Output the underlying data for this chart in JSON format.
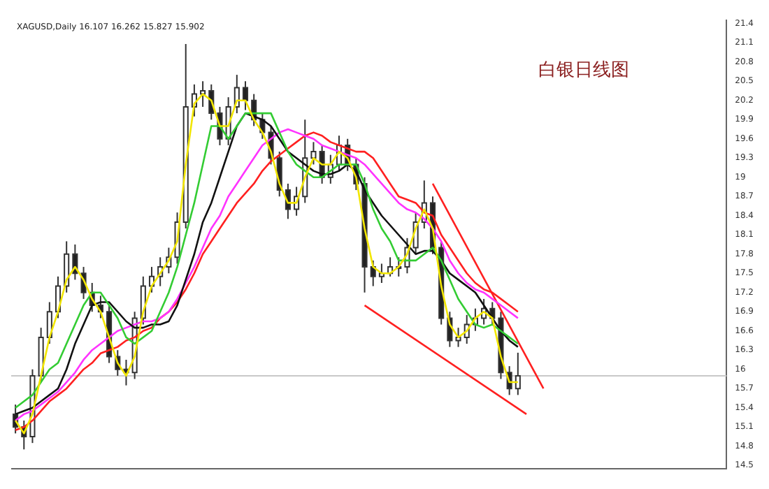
{
  "chart_data": {
    "type": "candlestick",
    "title": "白银日线图",
    "subtitle": "XAGUSD,Daily 16.107 16.262 15.827 15.902",
    "categories": [
      null,
      null,
      null,
      null,
      null,
      null,
      null,
      null,
      null,
      null,
      null,
      null,
      null,
      null,
      null,
      null,
      null,
      null,
      null,
      null,
      null,
      null,
      null,
      null,
      null,
      null,
      null,
      null,
      null,
      null,
      null,
      null,
      null,
      null,
      null,
      null,
      null,
      null,
      null,
      null,
      null,
      null,
      null,
      null,
      null,
      null,
      null,
      null,
      null,
      null,
      null,
      null,
      null,
      null,
      null,
      null,
      null,
      null,
      null,
      null,
      null,
      null,
      null,
      null,
      null,
      null,
      null,
      null,
      null,
      null,
      null,
      null,
      null,
      null,
      null,
      null,
      null,
      null,
      null,
      null,
      null,
      null,
      null,
      null
    ],
    "ohlc": [
      [
        15.3,
        15.45,
        15.0,
        15.1
      ],
      [
        15.1,
        15.2,
        14.75,
        14.95
      ],
      [
        14.95,
        16.0,
        14.85,
        15.9
      ],
      [
        15.9,
        16.65,
        15.8,
        16.5
      ],
      [
        16.5,
        17.05,
        16.4,
        16.9
      ],
      [
        16.9,
        17.45,
        16.8,
        17.3
      ],
      [
        17.3,
        18.0,
        17.2,
        17.8
      ],
      [
        17.8,
        17.95,
        17.4,
        17.5
      ],
      [
        17.5,
        17.6,
        17.1,
        17.2
      ],
      [
        17.2,
        17.35,
        16.9,
        17.0
      ],
      [
        17.0,
        17.15,
        16.8,
        16.9
      ],
      [
        16.9,
        17.0,
        16.1,
        16.2
      ],
      [
        16.2,
        16.3,
        15.9,
        16.0
      ],
      [
        16.0,
        16.15,
        15.75,
        15.95
      ],
      [
        15.95,
        16.9,
        15.85,
        16.8
      ],
      [
        16.8,
        17.45,
        16.7,
        17.3
      ],
      [
        17.3,
        17.6,
        17.2,
        17.45
      ],
      [
        17.45,
        17.75,
        17.3,
        17.6
      ],
      [
        17.6,
        17.9,
        17.5,
        17.75
      ],
      [
        17.75,
        18.45,
        17.65,
        18.3
      ],
      [
        18.3,
        21.08,
        18.2,
        20.1
      ],
      [
        20.1,
        20.45,
        19.95,
        20.3
      ],
      [
        20.3,
        20.5,
        20.1,
        20.35
      ],
      [
        20.35,
        20.45,
        19.9,
        20.0
      ],
      [
        20.0,
        20.1,
        19.5,
        19.6
      ],
      [
        19.6,
        20.25,
        19.5,
        20.1
      ],
      [
        20.1,
        20.6,
        20.0,
        20.4
      ],
      [
        20.4,
        20.5,
        20.05,
        20.2
      ],
      [
        20.2,
        20.3,
        19.8,
        19.9
      ],
      [
        19.9,
        20.0,
        19.6,
        19.7
      ],
      [
        19.7,
        19.8,
        19.2,
        19.3
      ],
      [
        19.3,
        19.4,
        18.7,
        18.8
      ],
      [
        18.8,
        18.9,
        18.35,
        18.5
      ],
      [
        18.5,
        18.85,
        18.4,
        18.7
      ],
      [
        18.7,
        19.9,
        18.6,
        19.3
      ],
      [
        19.3,
        19.55,
        19.2,
        19.4
      ],
      [
        19.4,
        19.5,
        18.9,
        19.0
      ],
      [
        19.0,
        19.35,
        18.9,
        19.2
      ],
      [
        19.2,
        19.65,
        19.1,
        19.5
      ],
      [
        19.5,
        19.6,
        19.1,
        19.2
      ],
      [
        19.2,
        19.3,
        18.8,
        18.9
      ],
      [
        18.9,
        19.0,
        17.2,
        17.6
      ],
      [
        17.6,
        17.7,
        17.3,
        17.45
      ],
      [
        17.45,
        17.65,
        17.35,
        17.5
      ],
      [
        17.5,
        17.75,
        17.45,
        17.6
      ],
      [
        17.6,
        17.75,
        17.45,
        17.6
      ],
      [
        17.6,
        18.05,
        17.5,
        17.9
      ],
      [
        17.9,
        18.45,
        17.8,
        18.3
      ],
      [
        18.3,
        18.95,
        18.2,
        18.6
      ],
      [
        18.6,
        18.7,
        17.8,
        17.9
      ],
      [
        17.9,
        18.0,
        16.7,
        16.8
      ],
      [
        16.8,
        16.9,
        16.35,
        16.45
      ],
      [
        16.45,
        16.65,
        16.35,
        16.5
      ],
      [
        16.5,
        16.85,
        16.4,
        16.7
      ],
      [
        16.7,
        16.95,
        16.6,
        16.8
      ],
      [
        16.8,
        17.1,
        16.7,
        16.95
      ],
      [
        16.95,
        17.05,
        16.7,
        16.8
      ],
      [
        16.8,
        16.9,
        15.85,
        15.95
      ],
      [
        15.95,
        16.05,
        15.6,
        15.7
      ],
      [
        15.7,
        16.26,
        15.6,
        15.9
      ],
      null,
      null,
      null,
      null,
      null,
      null,
      null,
      null,
      null,
      null,
      null,
      null,
      null,
      null,
      null,
      null,
      null,
      null,
      null,
      null,
      null,
      null,
      null,
      null
    ],
    "series": [
      {
        "type": "line",
        "color": "#f2e600",
        "values": [
          15.2,
          15.0,
          15.3,
          15.9,
          16.5,
          16.9,
          17.4,
          17.6,
          17.4,
          17.1,
          16.9,
          16.5,
          16.1,
          15.9,
          16.2,
          16.9,
          17.3,
          17.5,
          17.7,
          18.0,
          19.2,
          20.15,
          20.3,
          20.2,
          19.8,
          19.8,
          20.2,
          20.2,
          19.9,
          19.7,
          19.4,
          18.9,
          18.6,
          18.6,
          19.0,
          19.3,
          19.2,
          19.2,
          19.4,
          19.3,
          19.0,
          18.2,
          17.6,
          17.5,
          17.5,
          17.6,
          17.8,
          18.2,
          18.5,
          18.2,
          17.3,
          16.7,
          16.5,
          16.6,
          16.8,
          16.9,
          16.8,
          16.2,
          15.8,
          15.8,
          null,
          null,
          null,
          null,
          null,
          null,
          null,
          null,
          null,
          null,
          null,
          null,
          null,
          null,
          null,
          null,
          null,
          null,
          null,
          null,
          null,
          null,
          null,
          null
        ]
      },
      {
        "type": "line",
        "color": "#33cc33",
        "values": [
          15.4,
          15.5,
          15.6,
          15.8,
          16.0,
          16.1,
          16.4,
          16.7,
          17.0,
          17.2,
          17.2,
          17.0,
          16.8,
          16.5,
          16.4,
          16.5,
          16.6,
          16.9,
          17.2,
          17.6,
          18.1,
          18.6,
          19.2,
          19.8,
          19.8,
          19.6,
          19.8,
          20.0,
          20.0,
          20.0,
          20.0,
          19.7,
          19.4,
          19.2,
          19.1,
          19.0,
          19.0,
          19.1,
          19.2,
          19.2,
          19.2,
          18.9,
          18.5,
          18.2,
          18.0,
          17.7,
          17.7,
          17.7,
          17.8,
          17.9,
          17.7,
          17.4,
          17.1,
          16.9,
          16.7,
          16.65,
          16.7,
          16.6,
          16.5,
          16.4,
          null,
          null,
          null,
          null,
          null,
          null,
          null,
          null,
          null,
          null,
          null,
          null,
          null,
          null,
          null,
          null,
          null,
          null,
          null,
          null,
          null,
          null,
          null,
          null
        ]
      },
      {
        "type": "line",
        "color": "#111111",
        "values": [
          15.3,
          15.35,
          15.4,
          15.5,
          15.6,
          15.7,
          16.0,
          16.4,
          16.7,
          17.0,
          17.05,
          17.05,
          16.9,
          16.75,
          16.65,
          16.65,
          16.7,
          16.7,
          16.75,
          17.0,
          17.4,
          17.8,
          18.3,
          18.6,
          19.0,
          19.4,
          19.8,
          20.0,
          19.95,
          19.9,
          19.8,
          19.6,
          19.4,
          19.3,
          19.2,
          19.1,
          19.05,
          19.05,
          19.1,
          19.2,
          19.1,
          18.8,
          18.6,
          18.4,
          18.25,
          18.1,
          17.95,
          17.8,
          17.85,
          17.85,
          17.7,
          17.5,
          17.4,
          17.3,
          17.2,
          17.0,
          16.8,
          16.6,
          16.45,
          16.35,
          null,
          null,
          null,
          null,
          null,
          null,
          null,
          null,
          null,
          null,
          null,
          null,
          null,
          null,
          null,
          null,
          null,
          null,
          null,
          null,
          null,
          null,
          null,
          null
        ]
      },
      {
        "type": "line",
        "color": "#ff33ff",
        "values": [
          15.2,
          15.3,
          15.35,
          15.45,
          15.55,
          15.65,
          15.8,
          15.95,
          16.15,
          16.3,
          16.4,
          16.5,
          16.6,
          16.65,
          16.7,
          16.75,
          16.75,
          16.8,
          16.9,
          17.1,
          17.35,
          17.6,
          17.9,
          18.2,
          18.4,
          18.7,
          18.9,
          19.1,
          19.3,
          19.5,
          19.6,
          19.7,
          19.75,
          19.7,
          19.65,
          19.6,
          19.5,
          19.45,
          19.4,
          19.35,
          19.3,
          19.2,
          19.05,
          18.9,
          18.75,
          18.6,
          18.5,
          18.45,
          18.35,
          18.2,
          18.0,
          17.7,
          17.5,
          17.35,
          17.25,
          17.2,
          17.1,
          17.0,
          16.9,
          16.8,
          null,
          null,
          null,
          null,
          null,
          null,
          null,
          null,
          null,
          null,
          null,
          null,
          null,
          null,
          null,
          null,
          null,
          null,
          null,
          null,
          null,
          null,
          null,
          null
        ]
      },
      {
        "type": "line",
        "color": "#ff2020",
        "values": [
          15.05,
          15.1,
          15.2,
          15.35,
          15.5,
          15.6,
          15.7,
          15.85,
          16.0,
          16.1,
          16.25,
          16.3,
          16.35,
          16.45,
          16.5,
          16.6,
          16.65,
          16.8,
          16.9,
          17.05,
          17.25,
          17.5,
          17.8,
          18.0,
          18.2,
          18.4,
          18.6,
          18.75,
          18.9,
          19.1,
          19.25,
          19.35,
          19.45,
          19.55,
          19.65,
          19.7,
          19.65,
          19.55,
          19.5,
          19.45,
          19.4,
          19.4,
          19.3,
          19.1,
          18.9,
          18.7,
          18.65,
          18.6,
          18.45,
          18.4,
          18.1,
          17.9,
          17.7,
          17.5,
          17.35,
          17.25,
          17.2,
          17.1,
          17.0,
          16.9,
          null,
          null,
          null,
          null,
          null,
          null,
          null,
          null,
          null,
          null,
          null,
          null,
          null,
          null,
          null,
          null,
          null,
          null,
          null,
          null,
          null,
          null,
          null,
          null
        ]
      },
      {
        "type": "line",
        "color": "#ff2020",
        "values": [
          null,
          null,
          null,
          null,
          null,
          null,
          null,
          null,
          null,
          null,
          null,
          null,
          null,
          null,
          null,
          null,
          null,
          null,
          null,
          null,
          null,
          null,
          null,
          null,
          null,
          null,
          null,
          null,
          null,
          null,
          null,
          null,
          null,
          null,
          null,
          null,
          null,
          null,
          null,
          null,
          null,
          null,
          null,
          null,
          null,
          null,
          null,
          null,
          null,
          18.9,
          null,
          null,
          null,
          null,
          null,
          null,
          null,
          null,
          null,
          null,
          null,
          null,
          15.7,
          null,
          null,
          null,
          null,
          null,
          null,
          null,
          null,
          null,
          null,
          null,
          null,
          null,
          null,
          null,
          null,
          null,
          null,
          null,
          null,
          null
        ]
      },
      {
        "type": "line",
        "color": "#ff2020",
        "values": [
          null,
          null,
          null,
          null,
          null,
          null,
          null,
          null,
          null,
          null,
          null,
          null,
          null,
          null,
          null,
          null,
          null,
          null,
          null,
          null,
          null,
          null,
          null,
          null,
          null,
          null,
          null,
          null,
          null,
          null,
          null,
          null,
          null,
          null,
          null,
          null,
          null,
          null,
          null,
          null,
          null,
          17.0,
          null,
          null,
          null,
          null,
          null,
          null,
          null,
          null,
          null,
          null,
          null,
          null,
          null,
          null,
          null,
          null,
          null,
          null,
          15.3,
          null,
          null,
          null,
          null,
          null,
          null,
          null,
          null,
          null,
          null,
          null,
          null,
          null,
          null,
          null,
          null,
          null,
          null,
          null,
          null,
          null,
          null,
          null
        ]
      }
    ],
    "ylim": [
      14.45,
      21.45
    ],
    "yticks": [
      14.5,
      14.8,
      15.1,
      15.4,
      15.7,
      16.0,
      16.3,
      16.6,
      16.9,
      17.2,
      17.5,
      17.8,
      18.1,
      18.4,
      18.7,
      19.0,
      19.3,
      19.6,
      19.9,
      20.2,
      20.5,
      20.8,
      21.1,
      21.4
    ],
    "ref_lines": [
      {
        "axis": "y",
        "value": 15.9,
        "color": "#c8c8c8"
      }
    ],
    "tick_labels": "y",
    "grid": false,
    "legend": false
  }
}
